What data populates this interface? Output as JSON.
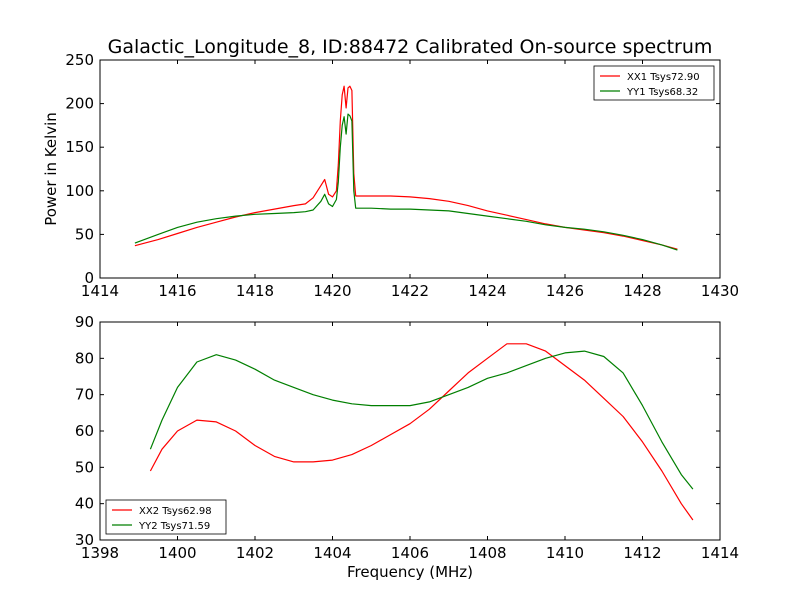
{
  "figure_title": "Galactic_Longitude_8, ID:88472 Calibrated On-source spectrum",
  "chart_data": [
    {
      "type": "line",
      "title": "Galactic_Longitude_8, ID:88472 Calibrated On-source spectrum",
      "xlabel": "",
      "ylabel": "Power in Kelvin",
      "xlim": [
        1414,
        1430
      ],
      "ylim": [
        0,
        250
      ],
      "xticks": [
        "1414",
        "1416",
        "1418",
        "1420",
        "1422",
        "1424",
        "1426",
        "1428",
        "1430"
      ],
      "yticks": [
        "0",
        "50",
        "100",
        "150",
        "200",
        "250"
      ],
      "grid": false,
      "legend_position": "top-right",
      "series": [
        {
          "name": "XX1 Tsys72.90",
          "color": "#ff0000",
          "x": [
            1414.9,
            1415.5,
            1416.0,
            1416.5,
            1417.0,
            1417.5,
            1418.0,
            1418.5,
            1419.0,
            1419.3,
            1419.5,
            1419.7,
            1419.8,
            1419.9,
            1420.0,
            1420.1,
            1420.15,
            1420.2,
            1420.25,
            1420.3,
            1420.35,
            1420.4,
            1420.45,
            1420.5,
            1420.55,
            1420.6,
            1420.7,
            1420.8,
            1421.0,
            1421.5,
            1422.0,
            1422.5,
            1423.0,
            1423.5,
            1424.0,
            1424.5,
            1425.0,
            1425.5,
            1426.0,
            1426.5,
            1427.0,
            1427.5,
            1428.0,
            1428.5,
            1428.9
          ],
          "y": [
            37,
            44,
            51,
            58,
            64,
            70,
            75,
            79,
            83,
            85,
            92,
            106,
            113,
            96,
            93,
            100,
            130,
            180,
            210,
            220,
            195,
            218,
            220,
            215,
            120,
            94,
            94,
            94,
            94,
            94,
            93,
            91,
            88,
            83,
            77,
            72,
            67,
            62,
            58,
            55,
            52,
            48,
            43,
            38,
            33
          ]
        },
        {
          "name": "YY1 Tsys68.32",
          "color": "#007f00",
          "x": [
            1414.9,
            1415.5,
            1416.0,
            1416.5,
            1417.0,
            1417.5,
            1418.0,
            1418.5,
            1419.0,
            1419.3,
            1419.5,
            1419.7,
            1419.8,
            1419.9,
            1420.0,
            1420.1,
            1420.15,
            1420.2,
            1420.25,
            1420.3,
            1420.35,
            1420.4,
            1420.45,
            1420.5,
            1420.55,
            1420.6,
            1420.7,
            1420.8,
            1421.0,
            1421.5,
            1422.0,
            1422.5,
            1423.0,
            1423.5,
            1424.0,
            1424.5,
            1425.0,
            1425.5,
            1426.0,
            1426.5,
            1427.0,
            1427.5,
            1428.0,
            1428.5,
            1428.9
          ],
          "y": [
            40,
            50,
            58,
            64,
            68,
            71,
            73,
            74,
            75,
            76,
            78,
            88,
            96,
            85,
            82,
            90,
            110,
            150,
            175,
            185,
            165,
            188,
            186,
            180,
            100,
            80,
            80,
            80,
            80,
            79,
            79,
            78,
            77,
            74,
            71,
            68,
            65,
            61,
            58,
            56,
            53,
            49,
            44,
            38,
            32
          ]
        }
      ]
    },
    {
      "type": "line",
      "title": "",
      "xlabel": "Frequency (MHz)",
      "ylabel": "",
      "xlim": [
        1398,
        1414
      ],
      "ylim": [
        30,
        90
      ],
      "xticks": [
        "1398",
        "1400",
        "1402",
        "1404",
        "1406",
        "1408",
        "1410",
        "1412",
        "1414"
      ],
      "yticks": [
        "30",
        "40",
        "50",
        "60",
        "70",
        "80",
        "90"
      ],
      "grid": false,
      "legend_position": "bottom-left",
      "series": [
        {
          "name": "XX2 Tsys62.98",
          "color": "#ff0000",
          "x": [
            1399.3,
            1399.6,
            1400.0,
            1400.5,
            1401.0,
            1401.5,
            1402.0,
            1402.5,
            1403.0,
            1403.5,
            1404.0,
            1404.5,
            1405.0,
            1405.5,
            1406.0,
            1406.5,
            1407.0,
            1407.5,
            1408.0,
            1408.5,
            1409.0,
            1409.5,
            1410.0,
            1410.5,
            1411.0,
            1411.5,
            1412.0,
            1412.5,
            1413.0,
            1413.3
          ],
          "y": [
            49,
            55,
            60,
            63,
            62.5,
            60,
            56,
            53,
            51.5,
            51.5,
            52,
            53.5,
            56,
            59,
            62,
            66,
            71,
            76,
            80,
            84,
            84,
            82,
            78,
            74,
            69,
            64,
            57,
            49,
            40,
            35.5
          ]
        },
        {
          "name": "YY2 Tsys71.59",
          "color": "#007f00",
          "x": [
            1399.3,
            1399.6,
            1400.0,
            1400.5,
            1401.0,
            1401.5,
            1402.0,
            1402.5,
            1403.0,
            1403.5,
            1404.0,
            1404.5,
            1405.0,
            1405.5,
            1406.0,
            1406.5,
            1407.0,
            1407.5,
            1408.0,
            1408.5,
            1409.0,
            1409.5,
            1410.0,
            1410.5,
            1411.0,
            1411.5,
            1412.0,
            1412.5,
            1413.0,
            1413.3
          ],
          "y": [
            55,
            63,
            72,
            79,
            81,
            79.5,
            77,
            74,
            72,
            70,
            68.5,
            67.5,
            67,
            67,
            67,
            68,
            70,
            72,
            74.5,
            76,
            78,
            80,
            81.5,
            82,
            80.5,
            76,
            67,
            57,
            48,
            44
          ]
        }
      ]
    }
  ]
}
